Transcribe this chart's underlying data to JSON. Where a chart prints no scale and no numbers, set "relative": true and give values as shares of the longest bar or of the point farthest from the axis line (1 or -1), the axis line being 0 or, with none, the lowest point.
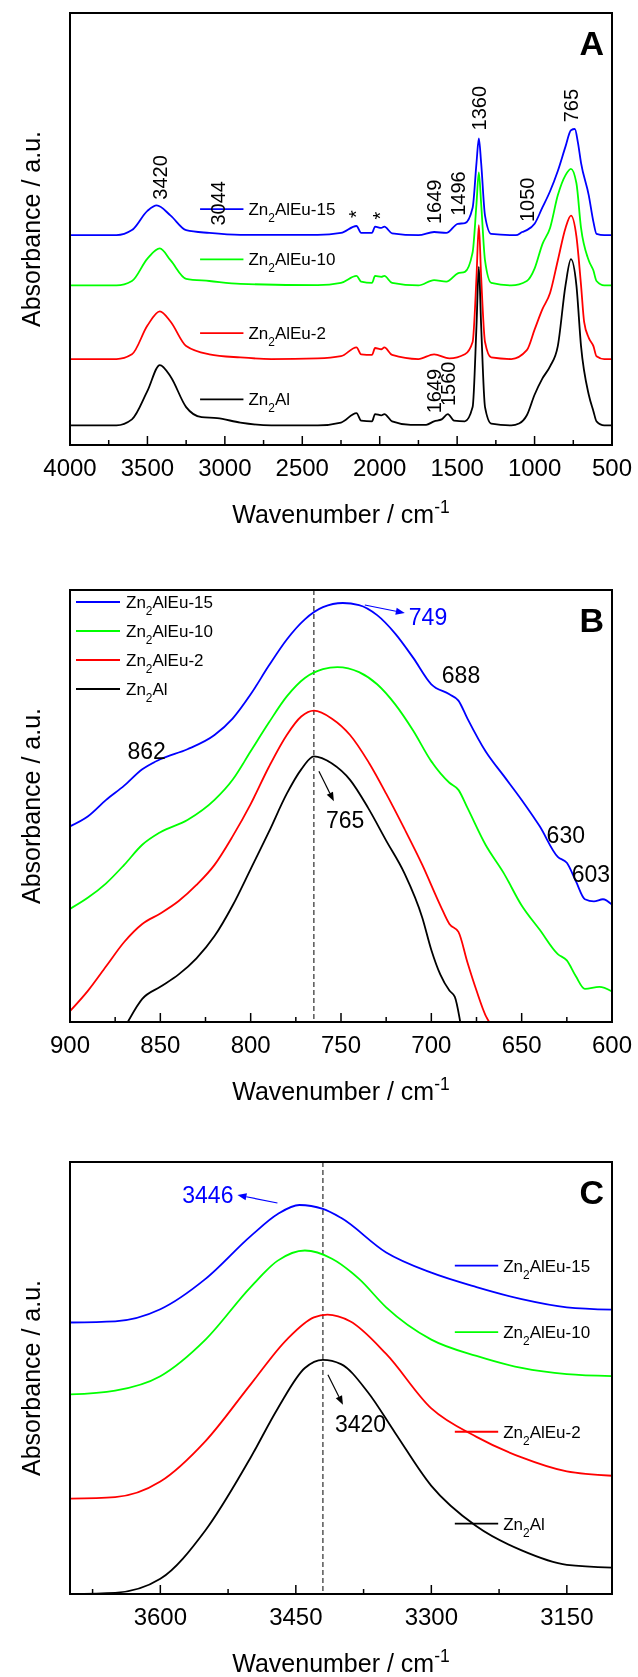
{
  "chart_data": [
    {
      "type": "line",
      "relative": true,
      "xlabel": "Wavenumber / cm$^{-1}$",
      "ylabel": "Absorbance / a.u.",
      "xlim": [
        4000,
        500
      ],
      "xticks": [
        4000,
        {
          "value": 3750,
          "label": null
        },
        3500,
        {
          "value": 3250,
          "label": null
        },
        3000,
        {
          "value": 2750,
          "label": null
        },
        2500,
        {
          "value": 2250,
          "label": null
        },
        2000,
        {
          "value": 1750,
          "label": null
        },
        1500,
        {
          "value": 1250,
          "label": null
        },
        1000,
        {
          "value": 750,
          "label": null
        },
        500
      ],
      "legend": "left",
      "series": [
        {
          "name": "Zn$_{2}$AlEu-15",
          "color": "#0000ff",
          "x": [
            4000,
            3700,
            3600,
            3500,
            3440,
            3350,
            3250,
            3100,
            2900,
            2400,
            2250,
            2150,
            2120,
            2050,
            2030,
            1990,
            1970,
            1920,
            1750,
            1649,
            1570,
            1496,
            1450,
            1400,
            1375,
            1360,
            1345,
            1320,
            1280,
            1120,
            1080,
            1050,
            1000,
            950,
            900,
            850,
            800,
            765,
            740,
            720,
            700,
            650,
            620,
            600,
            550,
            500
          ],
          "values": [
            0.664,
            0.664,
            0.68,
            0.741,
            0.758,
            0.726,
            0.68,
            0.671,
            0.665,
            0.665,
            0.671,
            0.693,
            0.671,
            0.671,
            0.691,
            0.687,
            0.691,
            0.67,
            0.664,
            0.674,
            0.671,
            0.7,
            0.702,
            0.751,
            0.893,
            0.97,
            0.893,
            0.726,
            0.668,
            0.664,
            0.674,
            0.68,
            0.7,
            0.751,
            0.803,
            0.867,
            0.945,
            0.996,
            1.0,
            0.957,
            0.893,
            0.79,
            0.706,
            0.668,
            0.664,
            0.664
          ]
        },
        {
          "name": "Zn$_{2}$AlEu-10",
          "color": "#00ff00",
          "x": [
            4000,
            3700,
            3600,
            3500,
            3420,
            3350,
            3250,
            3100,
            2900,
            2400,
            2250,
            2150,
            2120,
            2050,
            2030,
            1990,
            1970,
            1920,
            1750,
            1649,
            1570,
            1496,
            1450,
            1400,
            1375,
            1360,
            1345,
            1320,
            1280,
            1150,
            1050,
            1000,
            950,
            900,
            850,
            800,
            765,
            730,
            700,
            650,
            620,
            600,
            550,
            500
          ],
          "values": [
            0.505,
            0.505,
            0.519,
            0.59,
            0.622,
            0.584,
            0.526,
            0.519,
            0.51,
            0.506,
            0.513,
            0.535,
            0.517,
            0.513,
            0.535,
            0.532,
            0.535,
            0.513,
            0.505,
            0.522,
            0.517,
            0.543,
            0.548,
            0.61,
            0.764,
            0.863,
            0.764,
            0.584,
            0.513,
            0.505,
            0.519,
            0.558,
            0.635,
            0.687,
            0.79,
            0.854,
            0.874,
            0.829,
            0.687,
            0.584,
            0.552,
            0.519,
            0.505,
            0.505
          ]
        },
        {
          "name": "Zn$_{2}$AlEu-2",
          "color": "#ff0000",
          "x": [
            4000,
            3700,
            3600,
            3500,
            3420,
            3350,
            3250,
            3100,
            2900,
            2700,
            2400,
            2250,
            2150,
            2120,
            2050,
            2030,
            1990,
            1970,
            1920,
            1750,
            1649,
            1550,
            1450,
            1400,
            1375,
            1360,
            1345,
            1320,
            1280,
            1150,
            1050,
            1000,
            950,
            900,
            850,
            800,
            765,
            730,
            700,
            680,
            650,
            620,
            600,
            550,
            500
          ],
          "values": [
            0.272,
            0.272,
            0.287,
            0.378,
            0.423,
            0.39,
            0.313,
            0.287,
            0.277,
            0.272,
            0.274,
            0.281,
            0.309,
            0.287,
            0.285,
            0.307,
            0.303,
            0.309,
            0.285,
            0.272,
            0.287,
            0.274,
            0.287,
            0.326,
            0.532,
            0.696,
            0.532,
            0.326,
            0.277,
            0.272,
            0.3,
            0.365,
            0.429,
            0.481,
            0.584,
            0.687,
            0.726,
            0.661,
            0.506,
            0.39,
            0.339,
            0.313,
            0.281,
            0.272,
            0.272
          ]
        },
        {
          "name": "Zn$_{2}$Al",
          "color": "#000000",
          "x": [
            4000,
            3700,
            3600,
            3500,
            3420,
            3350,
            3250,
            3150,
            3050,
            2900,
            2700,
            2400,
            2250,
            2150,
            2120,
            2050,
            2030,
            1990,
            1970,
            1920,
            1800,
            1700,
            1649,
            1600,
            1560,
            1520,
            1450,
            1400,
            1375,
            1360,
            1345,
            1320,
            1280,
            1150,
            1100,
            1050,
            1000,
            950,
            900,
            850,
            800,
            765,
            730,
            700,
            650,
            620,
            600,
            550,
            500
          ],
          "values": [
            0.062,
            0.062,
            0.081,
            0.171,
            0.253,
            0.216,
            0.12,
            0.088,
            0.085,
            0.071,
            0.062,
            0.062,
            0.071,
            0.101,
            0.077,
            0.075,
            0.098,
            0.094,
            0.098,
            0.075,
            0.064,
            0.064,
            0.075,
            0.081,
            0.098,
            0.077,
            0.075,
            0.12,
            0.378,
            0.564,
            0.378,
            0.12,
            0.068,
            0.062,
            0.068,
            0.094,
            0.159,
            0.21,
            0.249,
            0.313,
            0.506,
            0.588,
            0.506,
            0.313,
            0.159,
            0.107,
            0.075,
            0.062,
            0.062
          ]
        }
      ],
      "annotations": [
        "A",
        {
          "text": "3420",
          "x": 3420,
          "y": 0.751
        },
        {
          "text": "3044",
          "x": 3044,
          "y": 0.669
        },
        {
          "text": "*",
          "x": 2150,
          "y": 0.693
        },
        {
          "text": "*",
          "x": 2000,
          "y": 0.688
        },
        {
          "text": "1649",
          "x": 1649,
          "y": 0.674
        },
        {
          "text": "1496",
          "x": 1496,
          "y": 0.7
        },
        {
          "text": "1360",
          "x": 1360,
          "y": 0.97
        },
        {
          "text": "1050",
          "x": 1050,
          "y": 0.68
        },
        {
          "text": "765",
          "x": 765,
          "y": 0.996
        },
        {
          "text": "1649",
          "x": 1649,
          "y": 0.075
        },
        {
          "text": "1560",
          "x": 1560,
          "y": 0.098
        }
      ]
    },
    {
      "type": "line",
      "relative": true,
      "xlabel": "Wavenumber / cm$^{-1}$",
      "ylabel": "Absorbance / a.u.",
      "xlim": [
        900,
        600
      ],
      "xticks": [
        900,
        {
          "value": 875,
          "label": null
        },
        850,
        {
          "value": 825,
          "label": null
        },
        800,
        {
          "value": 775,
          "label": null
        },
        750,
        {
          "value": 725,
          "label": null
        },
        700,
        {
          "value": 675,
          "label": null
        },
        650,
        {
          "value": 625,
          "label": null
        },
        600
      ],
      "legend": "top left",
      "ref_lines": [
        {
          "axis": "x",
          "value": 765,
          "line_style": "dashed"
        }
      ],
      "series": [
        {
          "name": "Zn$_{2}$AlEu-15",
          "color": "#0000ff",
          "x": [
            900,
            890,
            880,
            870,
            860,
            850,
            835,
            820,
            810,
            800,
            790,
            780,
            770,
            760,
            749,
            740,
            730,
            720,
            710,
            700,
            690,
            685,
            680,
            670,
            660,
            650,
            640,
            630,
            625,
            620,
            615,
            610,
            605,
            600
          ],
          "values": [
            0.467,
            0.491,
            0.53,
            0.564,
            0.603,
            0.627,
            0.651,
            0.685,
            0.724,
            0.782,
            0.85,
            0.913,
            0.961,
            0.99,
            1.0,
            0.995,
            0.971,
            0.927,
            0.869,
            0.806,
            0.782,
            0.767,
            0.724,
            0.646,
            0.588,
            0.53,
            0.467,
            0.394,
            0.38,
            0.336,
            0.293,
            0.288,
            0.293,
            0.28
          ]
        },
        {
          "name": "Zn$_{2}$AlEu-10",
          "color": "#00ff00",
          "x": [
            900,
            890,
            880,
            870,
            860,
            850,
            835,
            820,
            810,
            800,
            790,
            780,
            770,
            760,
            752,
            740,
            730,
            720,
            710,
            700,
            690,
            685,
            680,
            670,
            660,
            650,
            640,
            630,
            625,
            620,
            615,
            607,
            600
          ],
          "values": [
            0.27,
            0.297,
            0.331,
            0.375,
            0.423,
            0.453,
            0.482,
            0.53,
            0.578,
            0.646,
            0.714,
            0.777,
            0.821,
            0.842,
            0.847,
            0.835,
            0.806,
            0.758,
            0.695,
            0.622,
            0.571,
            0.554,
            0.511,
            0.423,
            0.356,
            0.278,
            0.22,
            0.162,
            0.147,
            0.109,
            0.079,
            0.084,
            0.073
          ]
        },
        {
          "name": "Zn$_{2}$AlEu-2",
          "color": "#ff0000",
          "x": [
            900,
            890,
            880,
            870,
            860,
            850,
            840,
            830,
            820,
            810,
            800,
            790,
            780,
            772,
            765,
            755,
            745,
            735,
            725,
            715,
            705,
            695,
            690,
            685,
            680,
            675,
            670,
            668
          ],
          "values": [
            0.026,
            0.075,
            0.133,
            0.191,
            0.234,
            0.259,
            0.288,
            0.327,
            0.375,
            0.443,
            0.52,
            0.608,
            0.685,
            0.729,
            0.743,
            0.724,
            0.685,
            0.622,
            0.545,
            0.462,
            0.375,
            0.278,
            0.234,
            0.215,
            0.142,
            0.075,
            0.016,
            0
          ]
        },
        {
          "name": "Zn$_{2}$Al",
          "color": "#000000",
          "x": [
            868,
            860,
            850,
            840,
            830,
            820,
            810,
            800,
            790,
            780,
            772,
            765,
            755,
            745,
            735,
            725,
            715,
            705,
            700,
            695,
            690,
            687,
            684
          ],
          "values": [
            0,
            0.055,
            0.084,
            0.113,
            0.152,
            0.205,
            0.278,
            0.365,
            0.453,
            0.545,
            0.603,
            0.634,
            0.617,
            0.578,
            0.511,
            0.433,
            0.356,
            0.249,
            0.172,
            0.113,
            0.075,
            0.06,
            0
          ]
        }
      ],
      "annotations": [
        "B",
        {
          "text": "749",
          "x": 749,
          "y": 1.0
        },
        {
          "text": "765",
          "x": 765,
          "y": 0.634
        },
        {
          "text": "688",
          "x": 688,
          "y": 0.775
        },
        {
          "text": "862",
          "x": 862,
          "y": 0.594
        },
        {
          "text": "630",
          "x": 630,
          "y": 0.394
        },
        {
          "text": "603",
          "x": 603,
          "y": 0.287
        }
      ]
    },
    {
      "type": "line",
      "relative": true,
      "xlabel": "Wavenumber / cm$^{-1}$",
      "ylabel": "Absorbance / a.u.",
      "xlim": [
        3700,
        3100
      ],
      "xticks": [
        {
          "value": 3675,
          "label": null
        },
        3600,
        {
          "value": 3525,
          "label": null
        },
        3450,
        {
          "value": 3375,
          "label": null
        },
        3300,
        {
          "value": 3225,
          "label": null
        },
        3150
      ],
      "legend": "right",
      "ref_lines": [
        {
          "axis": "x",
          "value": 3420,
          "line_style": "dashed"
        }
      ],
      "series": [
        {
          "name": "Zn$_{2}$AlEu-15",
          "color": "#0000ff",
          "x": [
            3700,
            3650,
            3600,
            3550,
            3500,
            3470,
            3446,
            3420,
            3400,
            3350,
            3300,
            3250,
            3200,
            3150,
            3100
          ],
          "values": [
            0.698,
            0.701,
            0.732,
            0.81,
            0.92,
            0.977,
            1.0,
            0.99,
            0.967,
            0.878,
            0.826,
            0.789,
            0.758,
            0.737,
            0.731
          ]
        },
        {
          "name": "Zn$_{2}$AlEu-10",
          "color": "#00ff00",
          "x": [
            3700,
            3650,
            3600,
            3550,
            3500,
            3470,
            3440,
            3410,
            3380,
            3350,
            3300,
            3250,
            3200,
            3150,
            3100
          ],
          "values": [
            0.513,
            0.523,
            0.56,
            0.654,
            0.789,
            0.857,
            0.883,
            0.862,
            0.81,
            0.737,
            0.654,
            0.612,
            0.581,
            0.565,
            0.56
          ]
        },
        {
          "name": "Zn$_{2}$AlEu-2",
          "color": "#ff0000",
          "x": [
            3700,
            3650,
            3600,
            3550,
            3500,
            3460,
            3430,
            3415,
            3390,
            3350,
            3300,
            3250,
            3200,
            3150,
            3100
          ],
          "values": [
            0.245,
            0.249,
            0.289,
            0.393,
            0.539,
            0.654,
            0.711,
            0.718,
            0.701,
            0.617,
            0.477,
            0.404,
            0.351,
            0.315,
            0.304
          ]
        },
        {
          "name": "Zn$_{2}$Al",
          "color": "#000000",
          "x": [
            3700,
            3650,
            3600,
            3550,
            3500,
            3470,
            3440,
            3420,
            3400,
            3370,
            3340,
            3300,
            3250,
            3200,
            3150,
            3100
          ],
          "values": [
            0,
            0.003,
            0.039,
            0.164,
            0.351,
            0.477,
            0.581,
            0.602,
            0.591,
            0.518,
            0.414,
            0.278,
            0.174,
            0.112,
            0.075,
            0.068
          ]
        }
      ],
      "annotations": [
        "C",
        {
          "text": "3446",
          "x": 3446,
          "y": 1.0
        },
        {
          "text": "3420",
          "x": 3420,
          "y": 0.602
        }
      ]
    }
  ]
}
